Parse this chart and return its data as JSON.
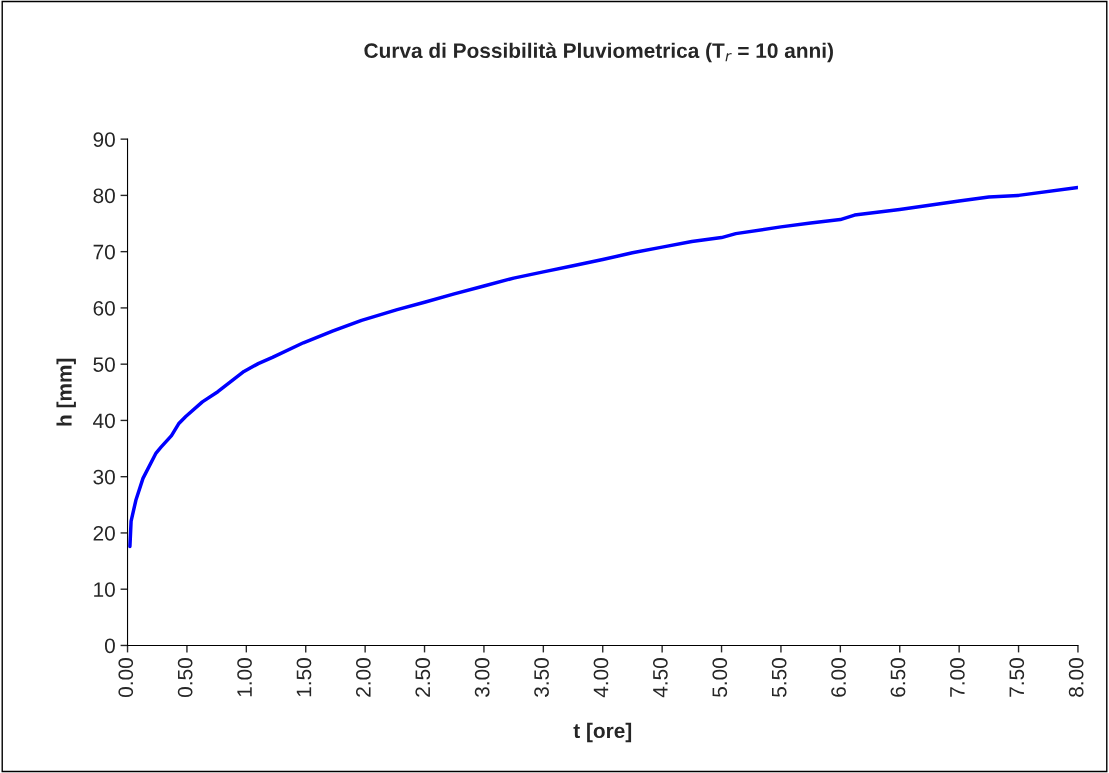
{
  "chart_data": {
    "type": "line",
    "title": "Curva di Possibilità Pluviometrica (T$_{r}$ = 10 anni)",
    "xlabel": "t [ore]",
    "ylabel": "h [mm]",
    "series": [
      {
        "color": "#0000ff",
        "x": [
          0.02,
          0.03,
          0.07,
          0.13,
          0.24,
          0.28,
          0.37,
          0.43,
          0.49,
          0.63,
          0.76,
          0.98,
          1.1,
          1.22,
          1.48,
          1.73,
          1.97,
          2.27,
          2.5,
          2.75,
          3.0,
          3.25,
          3.5,
          3.75,
          4.0,
          4.25,
          4.5,
          4.75,
          5.0,
          5.12,
          5.5,
          5.75,
          6.0,
          6.12,
          6.5,
          7.0,
          7.25,
          7.5,
          8.0
        ],
        "values": [
          17.6,
          22.1,
          25.8,
          29.7,
          34.2,
          35.2,
          37.3,
          39.4,
          40.7,
          43.3,
          45.1,
          48.7,
          50.1,
          51.2,
          53.8,
          55.9,
          57.8,
          59.7,
          61,
          62.5,
          63.9,
          65.3,
          66.4,
          67.5,
          68.6,
          69.8,
          70.8,
          71.8,
          72.5,
          73.2,
          74.4,
          75.1,
          75.7,
          76.5,
          77.5,
          79,
          79.7,
          80,
          81.4
        ]
      }
    ],
    "xlim": [
      0,
      8
    ],
    "xticks": [
      {
        "value": 0,
        "label": "0.00"
      },
      {
        "value": 0.5,
        "label": "0.50"
      },
      {
        "value": 1,
        "label": "1.00"
      },
      {
        "value": 1.5,
        "label": "1.50"
      },
      {
        "value": 2,
        "label": "2.00"
      },
      {
        "value": 2.5,
        "label": "2.50"
      },
      {
        "value": 3,
        "label": "3.00"
      },
      {
        "value": 3.5,
        "label": "3.50"
      },
      {
        "value": 4,
        "label": "4.00"
      },
      {
        "value": 4.5,
        "label": "4.50"
      },
      {
        "value": 5,
        "label": "5.00"
      },
      {
        "value": 5.5,
        "label": "5.50"
      },
      {
        "value": 6,
        "label": "6.00"
      },
      {
        "value": 6.5,
        "label": "6.50"
      },
      {
        "value": 7,
        "label": "7.00"
      },
      {
        "value": 7.5,
        "label": "7.50"
      },
      {
        "value": 8,
        "label": "8.00"
      }
    ],
    "ylim": [
      0,
      90
    ],
    "yticks": [
      0,
      10,
      20,
      30,
      40,
      50,
      60,
      70,
      80,
      90
    ],
    "grid": false,
    "legend": false,
    "marker": "none",
    "line_style": "solid"
  }
}
